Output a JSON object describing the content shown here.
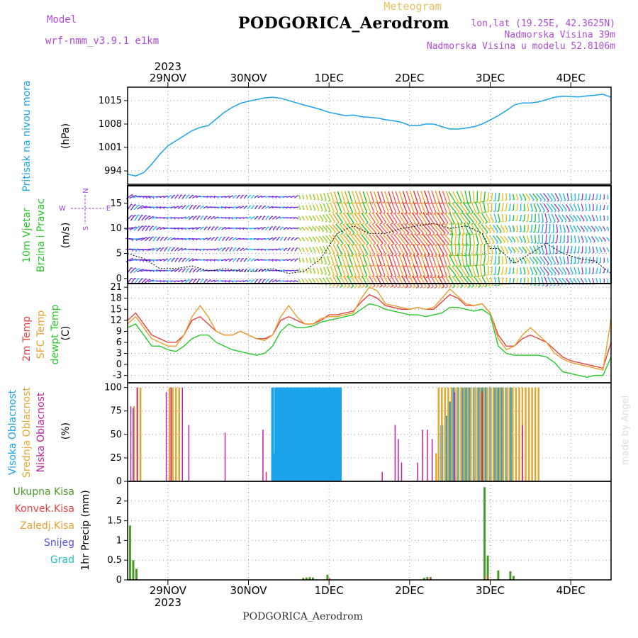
{
  "header": {
    "title": "PODGORICA_Aerodrom",
    "meteogram": "Meteogram",
    "model_label": "Model",
    "model": "wrf-nmm_v3.9.1 e1km",
    "lonlat": "lon,lat (19.25E, 42.3625N)",
    "elevation": "Nadmorska Visina 39m",
    "model_elevation": "Nadmorska Visina u modelu 52.8106m"
  },
  "footer": {
    "name": "PODGORICA_Aerodrom",
    "credit": "made by Angel"
  },
  "colors": {
    "pressure": "#1aa3e8",
    "temp2m": "#e84040",
    "sfc": "#e8a030",
    "dew": "#28c828",
    "high_cloud": "#1aa3e8",
    "mid_cloud": "#e0a830",
    "low_cloud": "#c0209a",
    "total_precip": "#4a9a2a",
    "conv_precip": "#e84040",
    "snow": "#5050e8",
    "grupa": "#20c0c0"
  },
  "chart_data": [
    {
      "type": "line",
      "title": "",
      "ylabel": "(hPa)",
      "side_label": "Pritisak na nivou mora",
      "ylim": [
        990,
        1019
      ],
      "yticks": [
        994,
        1001,
        1008,
        1015
      ],
      "grid": true,
      "x_unit": "days since 28NOV2023 00UTC",
      "x_ticks": [
        {
          "x": 1,
          "label": "29NOV"
        },
        {
          "x": 2,
          "label": "30NOV"
        },
        {
          "x": 3,
          "label": "1DEC"
        },
        {
          "x": 4,
          "label": "2DEC"
        },
        {
          "x": 5,
          "label": "3DEC"
        },
        {
          "x": 6,
          "label": "4DEC"
        }
      ],
      "year_label": "2023",
      "xlim": [
        0.5,
        6.5
      ],
      "series": [
        {
          "name": "",
          "x": [
            0.5,
            0.6,
            0.7,
            0.8,
            0.9,
            1.0,
            1.1,
            1.2,
            1.3,
            1.4,
            1.5,
            1.6,
            1.7,
            1.8,
            1.9,
            2.0,
            2.1,
            2.2,
            2.3,
            2.4,
            2.5,
            2.6,
            2.7,
            2.8,
            2.9,
            3.0,
            3.1,
            3.2,
            3.3,
            3.4,
            3.5,
            3.6,
            3.7,
            3.8,
            3.9,
            4.0,
            4.1,
            4.2,
            4.3,
            4.4,
            4.5,
            4.6,
            4.7,
            4.8,
            4.9,
            5.0,
            5.1,
            5.2,
            5.3,
            5.4,
            5.5,
            5.6,
            5.7,
            5.8,
            5.9,
            6.0,
            6.1,
            6.2,
            6.3,
            6.4,
            6.5
          ],
          "values": [
            993,
            992.5,
            993.5,
            996,
            999,
            1001.5,
            1003,
            1004.5,
            1006,
            1007,
            1007.5,
            1009.5,
            1011.5,
            1013,
            1014.2,
            1014.8,
            1015.3,
            1015.8,
            1016,
            1015.7,
            1015,
            1014.3,
            1013.6,
            1013,
            1012.3,
            1011.5,
            1011,
            1010.5,
            1010.7,
            1010.2,
            1010,
            1009.8,
            1009.3,
            1009,
            1008.5,
            1007.6,
            1007.5,
            1008,
            1008,
            1007.2,
            1006.5,
            1006.5,
            1006.8,
            1007.2,
            1008,
            1009.2,
            1010.5,
            1012,
            1013.7,
            1014.3,
            1014.3,
            1014.6,
            1015.3,
            1016,
            1016.3,
            1016.2,
            1016.1,
            1016.4,
            1016.6,
            1016.9,
            1016
          ]
        }
      ]
    },
    {
      "type": "line",
      "title": "",
      "ylabel": "(m/s)",
      "side_label": [
        "10m Vjetar",
        "Brzina i Pravac"
      ],
      "compass": {
        "n": "N",
        "s": "S",
        "w": "W",
        "e": "E"
      },
      "ylim": [
        -1,
        18.5
      ],
      "yticks": [
        0,
        5,
        10,
        15
      ],
      "grid": true,
      "xlim": [
        0.5,
        6.5
      ],
      "series": [
        {
          "name": "",
          "x": [
            0.5,
            0.7,
            0.9,
            1.1,
            1.3,
            1.5,
            1.7,
            1.9,
            2.1,
            2.3,
            2.5,
            2.7,
            2.9,
            3.1,
            3.3,
            3.5,
            3.7,
            3.9,
            4.1,
            4.3,
            4.5,
            4.7,
            4.9,
            5.0,
            5.1,
            5.3,
            5.5,
            5.7,
            5.9,
            6.1,
            6.3,
            6.5
          ],
          "values": [
            5,
            4,
            2,
            2,
            2.5,
            1.5,
            2,
            1.5,
            1.5,
            2,
            1,
            1.5,
            4,
            9,
            10.5,
            9,
            9,
            10,
            10.5,
            11,
            10,
            10.5,
            9,
            6,
            6,
            3,
            5,
            7,
            5,
            4,
            3.5,
            1
          ]
        }
      ],
      "wind_direction_colors": {
        "0.5-2.5": "purple/cyan",
        "2.6-3.5": "yellow-green-red",
        "3.5-4.5": "red-orange",
        "4.5-6.5": "green-yellow-cyan"
      }
    },
    {
      "type": "line",
      "title": "",
      "ylabel": "(C)",
      "side_labels": [
        "2m Temp",
        "SFC Temp",
        "dewpt Temp"
      ],
      "ylim": [
        -5,
        22
      ],
      "yticks": [
        -3,
        0,
        3,
        6,
        9,
        12,
        15,
        18,
        21
      ],
      "grid": true,
      "xlim": [
        0.5,
        6.5
      ],
      "series": [
        {
          "name": "2m Temp",
          "x": [
            0.5,
            0.6,
            0.7,
            0.8,
            0.9,
            1.0,
            1.1,
            1.2,
            1.3,
            1.4,
            1.5,
            1.6,
            1.7,
            1.8,
            1.9,
            2.0,
            2.1,
            2.2,
            2.3,
            2.4,
            2.5,
            2.6,
            2.7,
            2.8,
            2.9,
            3.0,
            3.1,
            3.2,
            3.3,
            3.4,
            3.5,
            3.6,
            3.7,
            3.8,
            3.9,
            4.0,
            4.1,
            4.2,
            4.3,
            4.4,
            4.5,
            4.6,
            4.7,
            4.8,
            4.9,
            5.0,
            5.1,
            5.2,
            5.3,
            5.4,
            5.5,
            5.6,
            5.7,
            5.8,
            5.9,
            6.0,
            6.1,
            6.2,
            6.3,
            6.4,
            6.5
          ],
          "values": [
            12,
            14,
            11,
            8,
            7,
            6,
            6,
            8,
            12,
            13,
            11,
            9,
            8,
            8,
            9,
            8,
            7,
            7,
            8,
            12,
            13,
            12,
            11,
            11,
            12,
            13.5,
            13.5,
            14,
            14.5,
            17,
            19,
            18,
            16,
            15.5,
            15,
            15,
            15.5,
            15,
            15,
            17,
            19,
            18,
            16,
            16,
            16.5,
            14,
            8,
            5,
            5,
            7,
            8,
            7,
            6,
            4,
            2,
            1,
            0.5,
            0,
            -0.5,
            -1,
            6
          ]
        },
        {
          "name": "SFC Temp",
          "x": [
            0.5,
            0.6,
            0.7,
            0.8,
            0.9,
            1.0,
            1.1,
            1.2,
            1.3,
            1.4,
            1.5,
            1.6,
            1.7,
            1.8,
            1.9,
            2.0,
            2.1,
            2.2,
            2.3,
            2.4,
            2.5,
            2.6,
            2.7,
            2.8,
            2.9,
            3.0,
            3.1,
            3.2,
            3.3,
            3.4,
            3.5,
            3.6,
            3.7,
            3.8,
            3.9,
            4.0,
            4.1,
            4.2,
            4.3,
            4.4,
            4.5,
            4.6,
            4.7,
            4.8,
            4.9,
            5.0,
            5.1,
            5.2,
            5.3,
            5.4,
            5.5,
            5.6,
            5.7,
            5.8,
            5.9,
            6.0,
            6.1,
            6.2,
            6.3,
            6.4,
            6.5
          ],
          "values": [
            11,
            13,
            10,
            7,
            6,
            5,
            5,
            8,
            13,
            16,
            13,
            9,
            8,
            8,
            9,
            8,
            7,
            6.5,
            8,
            13,
            16,
            13,
            11,
            11,
            12.5,
            13,
            13,
            13.5,
            14,
            18,
            21,
            20,
            16.5,
            16,
            15.5,
            15,
            15.5,
            15,
            15.5,
            18,
            20.5,
            18.5,
            16.5,
            16,
            16.5,
            14,
            7,
            4,
            5,
            8,
            10,
            8,
            6,
            3,
            1.5,
            0.5,
            0,
            -0.5,
            -1,
            -1.5,
            12.5
          ]
        },
        {
          "name": "dewpt Temp",
          "x": [
            0.5,
            0.6,
            0.7,
            0.8,
            0.9,
            1.0,
            1.1,
            1.2,
            1.3,
            1.4,
            1.5,
            1.6,
            1.7,
            1.8,
            1.9,
            2.0,
            2.1,
            2.2,
            2.3,
            2.4,
            2.5,
            2.6,
            2.7,
            2.8,
            2.9,
            3.0,
            3.1,
            3.2,
            3.3,
            3.4,
            3.5,
            3.6,
            3.7,
            3.8,
            3.9,
            4.0,
            4.1,
            4.2,
            4.3,
            4.4,
            4.5,
            4.6,
            4.7,
            4.8,
            4.9,
            5.0,
            5.1,
            5.2,
            5.3,
            5.4,
            5.5,
            5.6,
            5.7,
            5.8,
            5.9,
            6.0,
            6.1,
            6.2,
            6.3,
            6.4,
            6.5
          ],
          "values": [
            10,
            11,
            8,
            5,
            5,
            4,
            3.5,
            5,
            7,
            8,
            8,
            6,
            5,
            4,
            3.5,
            3,
            2.5,
            3,
            5,
            9,
            11,
            10,
            10,
            10.5,
            11.5,
            12,
            12.5,
            13,
            13.5,
            15,
            16.5,
            16,
            15,
            14.5,
            14,
            13.5,
            13.5,
            13,
            13.5,
            14,
            15.5,
            15.5,
            15,
            14.5,
            15,
            13.5,
            5,
            3,
            2.5,
            2.5,
            2.5,
            2.5,
            2,
            0.5,
            -2,
            -2.5,
            -3,
            -3.5,
            -3,
            -3,
            2
          ]
        }
      ]
    },
    {
      "type": "bar",
      "title": "",
      "ylabel": "(%)",
      "side_labels": [
        "Visoka Oblacnost",
        "Srednja Oblacnost",
        "Niska Oblacnost"
      ],
      "ylim": [
        0,
        105
      ],
      "yticks": [
        0,
        25,
        50,
        75,
        100
      ],
      "grid": true,
      "xlim": [
        0.5,
        6.5
      ],
      "series": [
        {
          "name": "Visoka Oblacnost",
          "x": [
            2.3,
            2.32,
            2.34,
            2.36,
            2.38,
            2.4,
            2.42,
            2.44,
            2.46,
            2.48,
            2.5,
            2.52,
            2.54,
            2.56,
            2.58,
            2.6,
            2.62,
            2.64,
            2.66,
            2.68,
            2.7,
            2.72,
            2.74,
            2.76,
            2.78,
            2.8,
            2.82,
            2.84,
            2.86,
            2.88,
            2.9,
            2.92,
            2.94,
            2.96,
            2.98,
            3.0,
            3.02,
            3.04,
            3.06,
            3.08,
            3.1,
            3.12,
            3.14,
            4.4,
            4.45,
            4.5,
            4.55,
            4.6,
            4.65,
            4.7,
            4.75,
            4.8,
            4.85,
            4.9,
            4.95,
            5.0,
            5.05,
            5.1,
            5.15,
            5.2,
            5.25
          ],
          "values": [
            100,
            30,
            100,
            100,
            100,
            100,
            100,
            100,
            100,
            100,
            100,
            100,
            100,
            100,
            100,
            100,
            100,
            100,
            100,
            100,
            100,
            100,
            100,
            100,
            100,
            100,
            100,
            100,
            100,
            100,
            100,
            100,
            100,
            100,
            100,
            100,
            100,
            100,
            100,
            100,
            100,
            100,
            100,
            60,
            70,
            85,
            100,
            100,
            100,
            100,
            100,
            100,
            100,
            100,
            100,
            100,
            100,
            100,
            100,
            100,
            100
          ]
        },
        {
          "name": "Srednja Oblacnost",
          "x": [
            0.58,
            0.62,
            0.66,
            1.02,
            1.06,
            1.1,
            1.14,
            4.33,
            4.36,
            4.4,
            4.44,
            4.48,
            4.52,
            4.56,
            4.6,
            4.64,
            4.68,
            4.72,
            4.76,
            4.8,
            4.84,
            4.88,
            4.92,
            4.96,
            5.0,
            5.04,
            5.08,
            5.12,
            5.16,
            5.2,
            5.24,
            5.28,
            5.32,
            5.36,
            5.4,
            5.44,
            5.48,
            5.52,
            5.56,
            5.6
          ],
          "values": [
            80,
            100,
            100,
            100,
            100,
            100,
            100,
            30,
            100,
            100,
            100,
            100,
            100,
            100,
            100,
            100,
            100,
            100,
            100,
            100,
            100,
            100,
            100,
            100,
            100,
            100,
            100,
            100,
            100,
            100,
            100,
            100,
            100,
            100,
            100,
            100,
            100,
            100,
            100,
            100
          ]
        },
        {
          "name": "Niska Oblacnost",
          "x": [
            0.54,
            0.57,
            0.62,
            0.98,
            1.04,
            1.18,
            1.26,
            1.71,
            2.18,
            2.22,
            3.66,
            3.82,
            3.86,
            3.9,
            4.1,
            4.16,
            4.22,
            4.28,
            4.56,
            4.9,
            5.4
          ],
          "values": [
            80,
            78,
            100,
            95,
            100,
            100,
            60,
            52,
            55,
            10,
            10,
            60,
            45,
            20,
            20,
            55,
            55,
            45,
            95,
            95,
            60
          ]
        }
      ]
    },
    {
      "type": "bar",
      "title": "",
      "ylabel": "1hr Precip (mm)",
      "legend_left": [
        "Ukupna Kisa",
        "Konvek.Kisa",
        "Zaledj.Kisa",
        "Snijeg",
        "Grad"
      ],
      "ylim": [
        0,
        2.5
      ],
      "yticks": [
        0,
        0.5,
        1,
        1.5,
        2
      ],
      "ytick_labels": [
        "0",
        "0.5",
        "1",
        "1.5",
        "2"
      ],
      "grid": true,
      "xlim": [
        0.5,
        6.5
      ],
      "series": [
        {
          "name": "Ukupna Kisa",
          "x": [
            0.53,
            0.57,
            0.61,
            2.68,
            2.72,
            2.76,
            2.8,
            2.98,
            4.18,
            4.22,
            4.26,
            4.93,
            4.97,
            5.1,
            5.25,
            5.29
          ],
          "values": [
            1.38,
            0.5,
            0.28,
            0.05,
            0.06,
            0.07,
            0.06,
            0.13,
            0.05,
            0.07,
            0.07,
            2.35,
            0.62,
            0.24,
            0.22,
            0.1
          ]
        },
        {
          "name": "Konvek.Kisa",
          "x": [
            0.55,
            2.99,
            4.24,
            4.95
          ],
          "values": [
            0.02,
            0.04,
            0.06,
            0.1
          ]
        }
      ],
      "x_ticks_bottom": [
        {
          "x": 1,
          "label": "29NOV"
        },
        {
          "x": 2,
          "label": "30NOV"
        },
        {
          "x": 3,
          "label": "1DEC"
        },
        {
          "x": 4,
          "label": "2DEC"
        },
        {
          "x": 5,
          "label": "3DEC"
        },
        {
          "x": 6,
          "label": "4DEC"
        }
      ],
      "year_label_bottom": "2023"
    }
  ]
}
